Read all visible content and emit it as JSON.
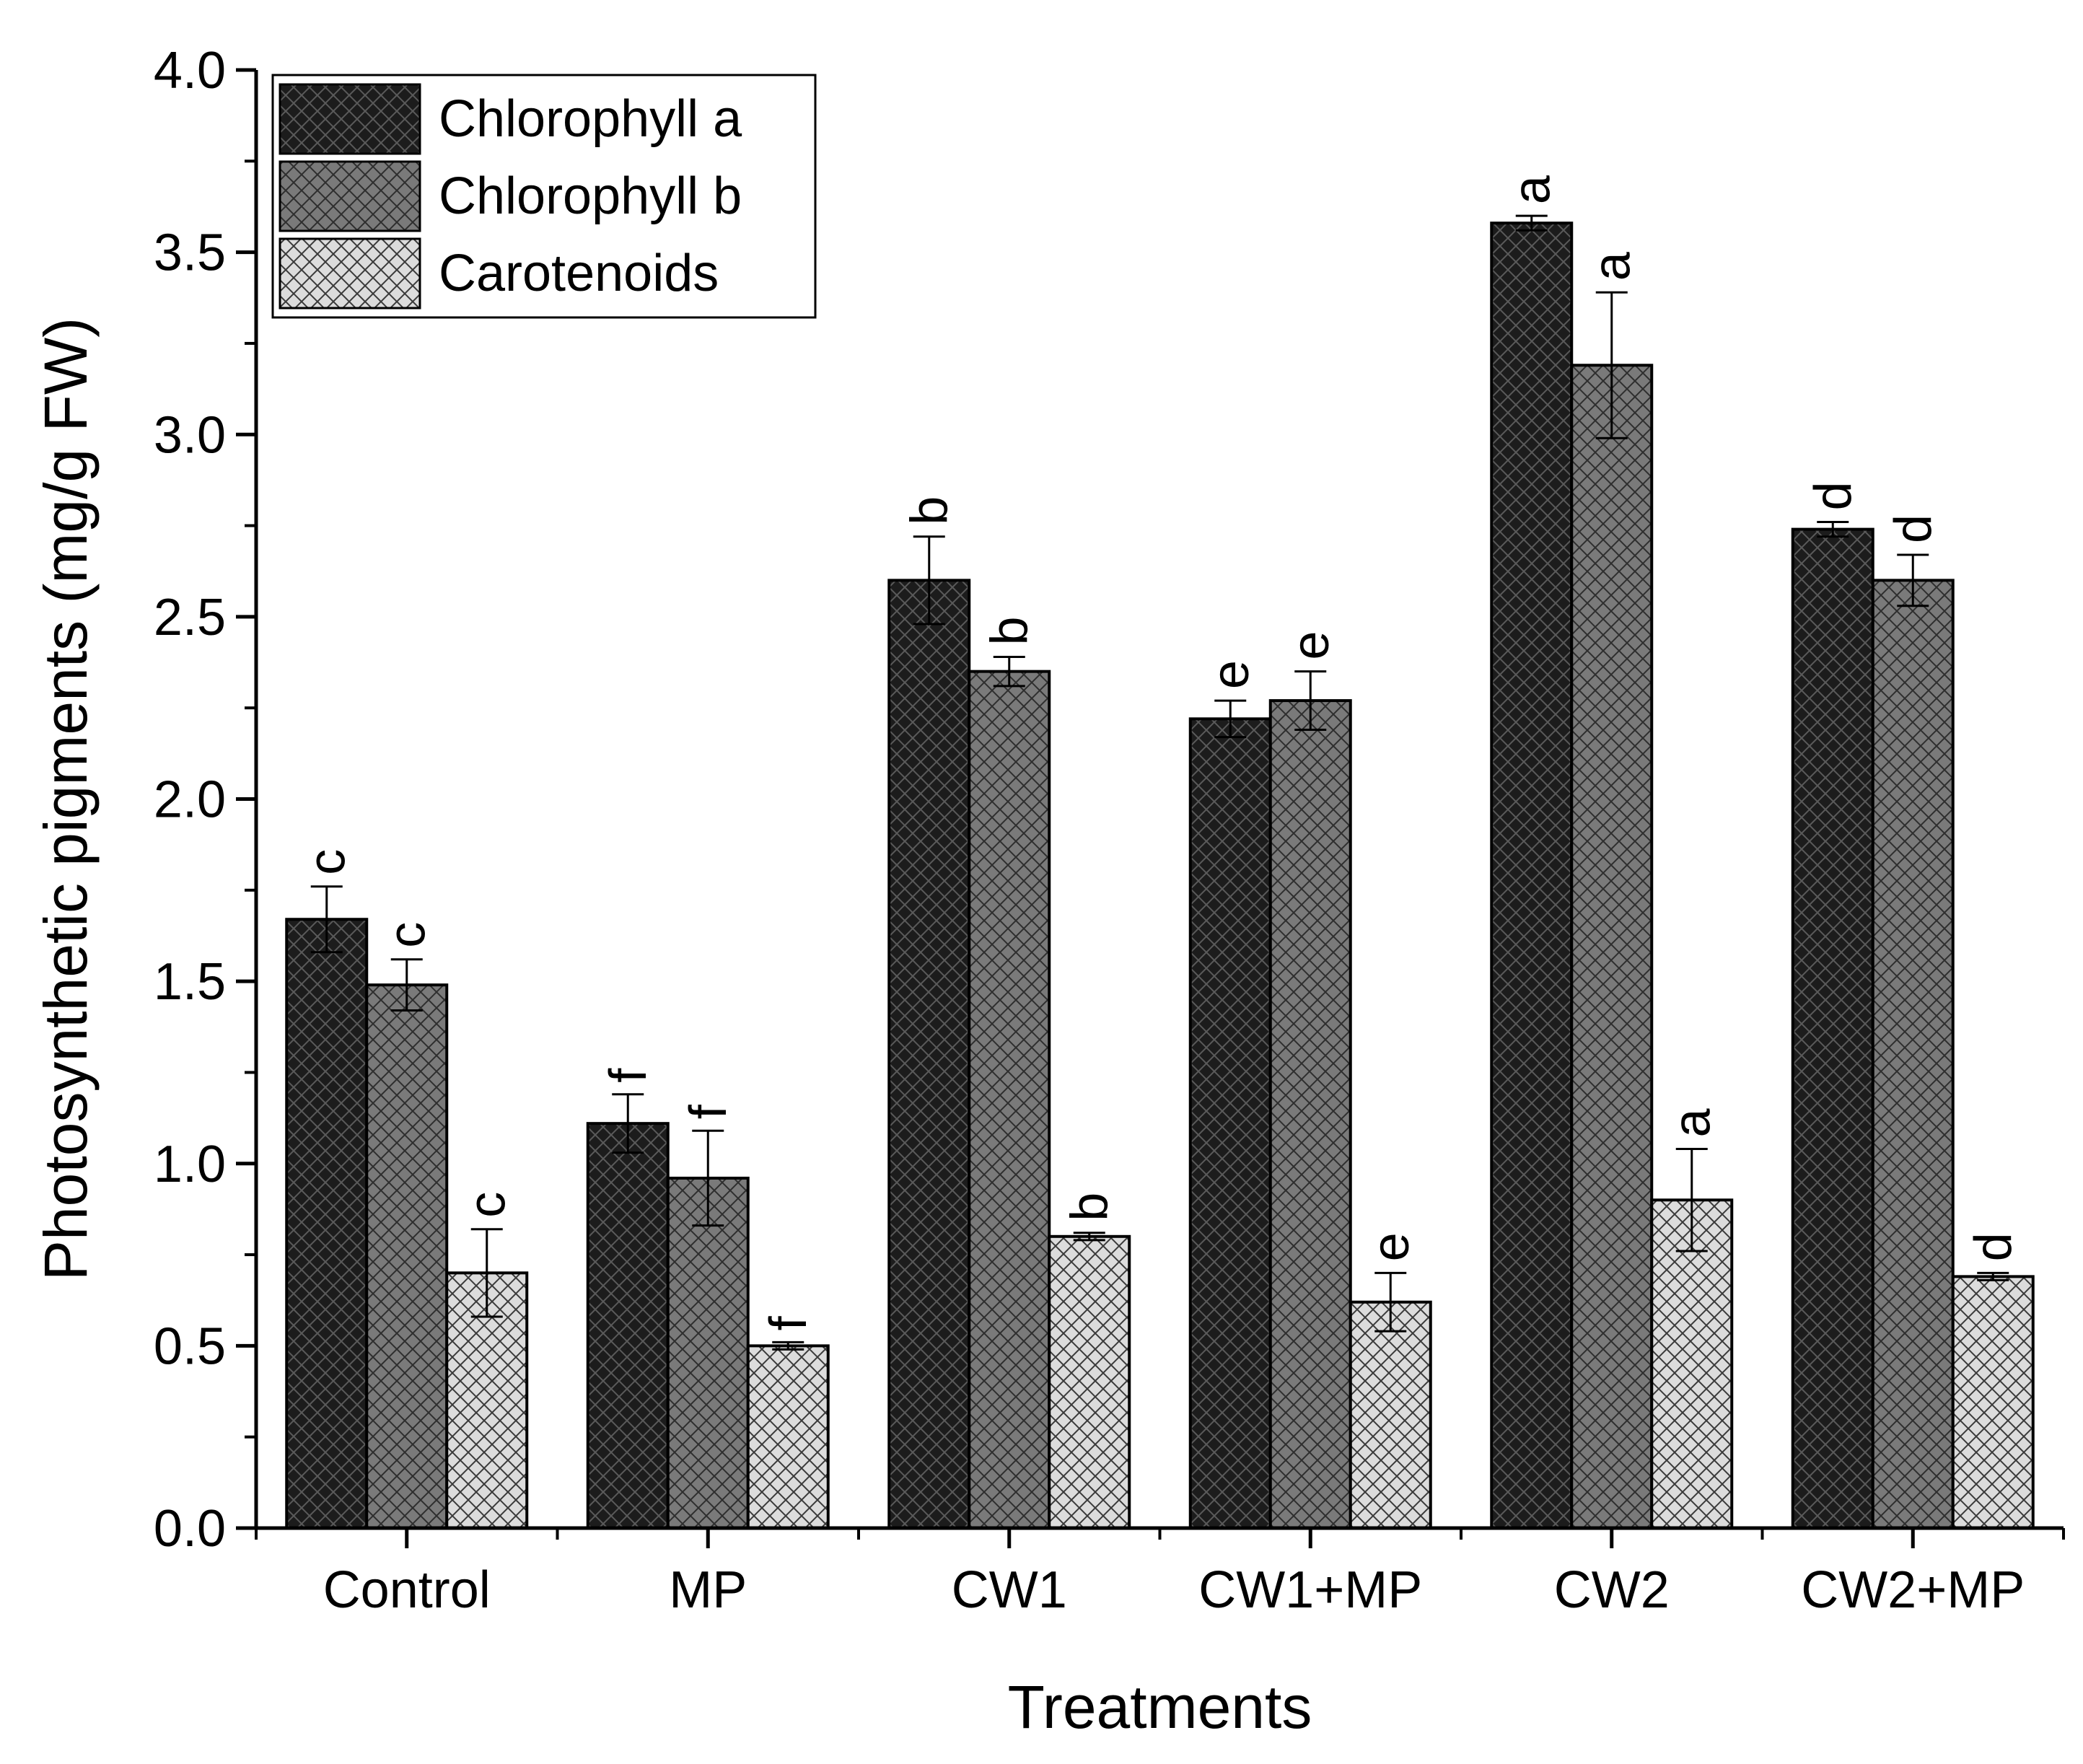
{
  "chart_data": {
    "type": "bar",
    "title": "",
    "xlabel": "Treatments",
    "ylabel": "Photosynthetic pigments (mg/g FW)",
    "ylim": [
      0,
      4.0
    ],
    "yticks": [
      "0.0",
      "0.5",
      "1.0",
      "1.5",
      "2.0",
      "2.5",
      "3.0",
      "3.5",
      "4.0"
    ],
    "grid": false,
    "legend_position": "top-left",
    "categories": [
      "Control",
      "MP",
      "CW1",
      "CW1+MP",
      "CW2",
      "CW2+MP"
    ],
    "series": [
      {
        "name": "Chlorophyll a",
        "color": "#1c1c1c",
        "values": [
          1.67,
          1.11,
          2.6,
          2.22,
          3.58,
          2.74
        ],
        "errors": [
          0.09,
          0.08,
          0.12,
          0.05,
          0.02,
          0.02
        ],
        "letters": [
          "c",
          "f",
          "b",
          "e",
          "a",
          "d"
        ]
      },
      {
        "name": "Chlorophyll b",
        "color": "#7a7a7a",
        "values": [
          1.49,
          0.96,
          2.35,
          2.27,
          3.19,
          2.6
        ],
        "errors": [
          0.07,
          0.13,
          0.04,
          0.08,
          0.2,
          0.07
        ],
        "letters": [
          "c",
          "f",
          "b",
          "e",
          "a",
          "d"
        ]
      },
      {
        "name": "Carotenoids",
        "color": "#d6d6d6",
        "values": [
          0.7,
          0.5,
          0.8,
          0.62,
          0.9,
          0.69
        ],
        "errors": [
          0.12,
          0.01,
          0.01,
          0.08,
          0.14,
          0.01
        ],
        "letters": [
          "c",
          "f",
          "b",
          "e",
          "a",
          "d"
        ]
      }
    ]
  }
}
